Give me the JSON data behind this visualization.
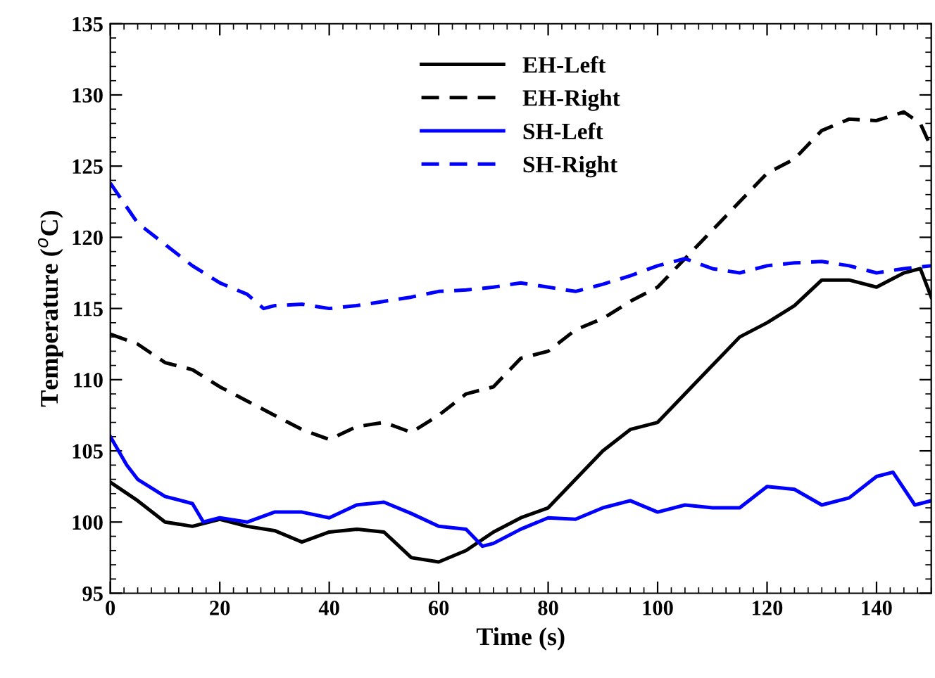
{
  "chart_data": {
    "type": "line",
    "xlabel": "Time (s)",
    "ylabel": "Temperature ($^{o}$C)",
    "xlim": [
      0,
      150
    ],
    "ylim": [
      95,
      135
    ],
    "xticks": [
      0,
      20,
      40,
      60,
      80,
      100,
      120,
      140
    ],
    "yticks": [
      95,
      100,
      105,
      110,
      115,
      120,
      125,
      130,
      135
    ],
    "grid": false,
    "legend": "top",
    "marker": "none",
    "series": [
      {
        "name": "EH-Left",
        "color": "#000000",
        "line_style": "solid",
        "x": [
          0,
          5,
          10,
          15,
          20,
          25,
          30,
          35,
          40,
          45,
          50,
          55,
          60,
          65,
          70,
          75,
          80,
          85,
          90,
          95,
          100,
          105,
          110,
          115,
          120,
          125,
          130,
          135,
          140,
          145,
          148,
          150
        ],
        "values": [
          102.8,
          101.5,
          100,
          99.7,
          100.2,
          99.7,
          99.4,
          98.6,
          99.3,
          99.5,
          99.3,
          97.5,
          97.2,
          98,
          99.3,
          100.3,
          101,
          103,
          105,
          106.5,
          107,
          109,
          111,
          113,
          114,
          115.2,
          117,
          117,
          116.5,
          117.5,
          117.8,
          115.8
        ]
      },
      {
        "name": "EH-Right",
        "color": "#000000",
        "line_style": "dashed",
        "x": [
          0,
          5,
          10,
          15,
          20,
          25,
          30,
          35,
          40,
          45,
          50,
          55,
          60,
          65,
          70,
          75,
          80,
          85,
          90,
          95,
          100,
          105,
          110,
          115,
          120,
          125,
          130,
          135,
          140,
          145,
          148,
          150
        ],
        "values": [
          113.2,
          112.5,
          111.2,
          110.7,
          109.5,
          108.5,
          107.5,
          106.5,
          105.8,
          106.7,
          107,
          106.3,
          107.5,
          109,
          109.5,
          111.5,
          112,
          113.5,
          114.3,
          115.5,
          116.5,
          118.5,
          120.5,
          122.5,
          124.5,
          125.5,
          127.5,
          128.3,
          128.2,
          128.8,
          128,
          126.3
        ]
      },
      {
        "name": "SH-Left",
        "color": "#0000ff",
        "line_style": "solid",
        "x": [
          0,
          3,
          5,
          10,
          15,
          17,
          20,
          25,
          30,
          35,
          40,
          45,
          50,
          55,
          60,
          65,
          68,
          70,
          75,
          80,
          85,
          90,
          95,
          100,
          105,
          110,
          115,
          120,
          125,
          130,
          135,
          140,
          143,
          147,
          150
        ],
        "values": [
          106,
          104,
          103,
          101.8,
          101.3,
          100,
          100.3,
          100,
          100.7,
          100.7,
          100.3,
          101.2,
          101.4,
          100.6,
          99.7,
          99.5,
          98.3,
          98.5,
          99.5,
          100.3,
          100.2,
          101,
          101.5,
          100.7,
          101.2,
          101,
          101,
          102.5,
          102.3,
          101.2,
          101.7,
          103.2,
          103.5,
          101.2,
          101.5
        ]
      },
      {
        "name": "SH-Right",
        "color": "#0000ff",
        "line_style": "dashed",
        "x": [
          0,
          5,
          10,
          15,
          20,
          25,
          28,
          30,
          35,
          40,
          45,
          50,
          55,
          60,
          65,
          70,
          75,
          80,
          85,
          90,
          95,
          100,
          105,
          110,
          115,
          120,
          125,
          130,
          135,
          140,
          145,
          150
        ],
        "values": [
          123.8,
          121,
          119.5,
          118,
          116.8,
          116,
          115,
          115.2,
          115.3,
          115,
          115.2,
          115.5,
          115.8,
          116.2,
          116.3,
          116.5,
          116.8,
          116.5,
          116.2,
          116.7,
          117.3,
          118,
          118.5,
          117.8,
          117.5,
          118,
          118.2,
          118.3,
          118,
          117.5,
          117.8,
          118
        ]
      }
    ]
  }
}
